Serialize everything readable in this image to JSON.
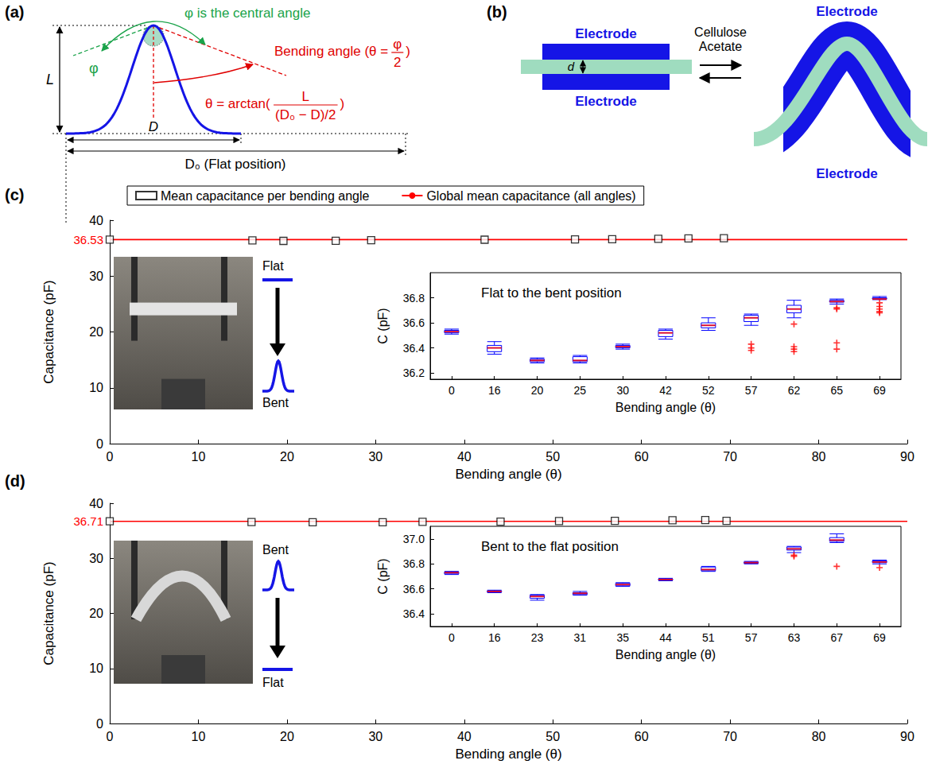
{
  "panel_a": {
    "letter": "(a)",
    "central_angle_note": "φ is the central angle",
    "phi": "φ",
    "height_label": "L",
    "width_label": "D",
    "flat_width_label": "D₀ (Flat position)",
    "bending_label": {
      "before": "Bending angle (θ =",
      "numerator": "φ",
      "denominator": "2",
      "after": ")"
    },
    "formula": {
      "before": "θ = arctan(",
      "numerator": "L",
      "denominator": "(D₀ − D)/2",
      "after": ")"
    }
  },
  "panel_b": {
    "letter": "(b)",
    "flat": {
      "top": "Electrode",
      "bottom": "Electrode"
    },
    "gap": "d",
    "material": "Cellulose Acetate",
    "bent": {
      "top": "Electrode",
      "bottom": "Electrode"
    }
  },
  "panel_c": {
    "letter": "(c)",
    "photo_labels": {
      "start": "Flat",
      "end": "Bent"
    }
  },
  "panel_d": {
    "letter": "(d)",
    "photo_labels": {
      "start": "Bent",
      "end": "Flat"
    }
  },
  "chart_data": [
    {
      "type": "scatter",
      "x_label": "Bending angle (θ)",
      "y_label": "Capacitance (pF)",
      "xlim": [
        0,
        90
      ],
      "xticks": [
        0,
        10,
        20,
        30,
        40,
        50,
        60,
        70,
        80,
        90
      ],
      "ylim": [
        0,
        40
      ],
      "yticks": [
        0,
        10,
        20,
        30,
        40
      ],
      "legend": "top",
      "series": [
        {
          "name": "Mean capacitance per bending angle",
          "type": "scatter",
          "marker": "square",
          "color": "#000000",
          "x": [
            0,
            16.1,
            19.6,
            25.5,
            29.5,
            42.3,
            52.5,
            56.7,
            61.9,
            65.3,
            69.3
          ],
          "values": [
            36.53,
            36.4,
            36.3,
            36.31,
            36.41,
            36.51,
            36.58,
            36.61,
            36.67,
            36.73,
            36.77
          ]
        },
        {
          "name": "Global mean capacitance (all angles)",
          "type": "line",
          "color": "#ff0000",
          "x": [
            0,
            90
          ],
          "values": [
            36.53,
            36.53
          ]
        }
      ]
    },
    {
      "type": "boxplot",
      "title": "Flat to the bent position",
      "x_label": "Bending angle (θ)",
      "y_label": "C (pF)",
      "categories": [
        "0",
        "16",
        "20",
        "25",
        "30",
        "42",
        "52",
        "57",
        "62",
        "65",
        "69"
      ],
      "ylim": [
        36.15,
        37.0
      ],
      "yticks": [
        36.2,
        36.4,
        36.6,
        36.8
      ],
      "color": "#0000ff",
      "boxes": [
        {
          "min": 36.51,
          "q1": 36.52,
          "median": 36.53,
          "q3": 36.54,
          "max": 36.55,
          "outliers": []
        },
        {
          "min": 36.35,
          "q1": 36.37,
          "median": 36.4,
          "q3": 36.42,
          "max": 36.45,
          "outliers": []
        },
        {
          "min": 36.28,
          "q1": 36.29,
          "median": 36.3,
          "q3": 36.31,
          "max": 36.32,
          "outliers": []
        },
        {
          "min": 36.28,
          "q1": 36.29,
          "median": 36.3,
          "q3": 36.33,
          "max": 36.34,
          "outliers": []
        },
        {
          "min": 36.39,
          "q1": 36.4,
          "median": 36.41,
          "q3": 36.42,
          "max": 36.43,
          "outliers": []
        },
        {
          "min": 36.47,
          "q1": 36.49,
          "median": 36.52,
          "q3": 36.54,
          "max": 36.55,
          "outliers": []
        },
        {
          "min": 36.54,
          "q1": 36.56,
          "median": 36.58,
          "q3": 36.6,
          "max": 36.64,
          "outliers": []
        },
        {
          "min": 36.58,
          "q1": 36.61,
          "median": 36.64,
          "q3": 36.66,
          "max": 36.67,
          "outliers": [
            36.43,
            36.4,
            36.38
          ]
        },
        {
          "min": 36.64,
          "q1": 36.68,
          "median": 36.71,
          "q3": 36.74,
          "max": 36.78,
          "outliers": [
            36.59,
            36.41,
            36.39,
            36.37
          ]
        },
        {
          "min": 36.75,
          "q1": 36.765,
          "median": 36.77,
          "q3": 36.78,
          "max": 36.79,
          "outliers": [
            36.72,
            36.71,
            36.44,
            36.39
          ]
        },
        {
          "min": 36.785,
          "q1": 36.79,
          "median": 36.79,
          "q3": 36.8,
          "max": 36.81,
          "outliers": [
            36.76,
            36.73,
            36.71,
            36.69,
            36.68
          ]
        }
      ]
    },
    {
      "type": "scatter",
      "x_label": "Bending angle (θ)",
      "y_label": "Capacitance (pF)",
      "xlim": [
        0,
        90
      ],
      "xticks": [
        0,
        10,
        20,
        30,
        40,
        50,
        60,
        70,
        80,
        90
      ],
      "ylim": [
        0,
        40
      ],
      "yticks": [
        0,
        10,
        20,
        30,
        40
      ],
      "series": [
        {
          "name": "Mean capacitance per bending angle",
          "type": "scatter",
          "marker": "square",
          "color": "#000000",
          "x": [
            0,
            16,
            22.9,
            30.8,
            35.3,
            44.1,
            50.7,
            57,
            63.5,
            67.2,
            69.6
          ],
          "values": [
            36.73,
            36.58,
            36.54,
            36.56,
            36.63,
            36.67,
            36.76,
            36.81,
            36.91,
            36.96,
            36.81
          ]
        },
        {
          "name": "Global mean capacitance (all angles)",
          "type": "line",
          "color": "#ff0000",
          "x": [
            0,
            90
          ],
          "values": [
            36.71,
            36.71
          ]
        }
      ]
    },
    {
      "type": "boxplot",
      "title": "Bent to the flat position",
      "x_label": "Bending angle (θ)",
      "y_label": "C (pF)",
      "categories": [
        "0",
        "16",
        "23",
        "31",
        "35",
        "44",
        "51",
        "57",
        "63",
        "67",
        "69"
      ],
      "ylim": [
        36.3,
        37.1
      ],
      "yticks": [
        36.4,
        36.6,
        36.8,
        {
          "value": 37,
          "label": "37.0"
        }
      ],
      "color": "#0000ff",
      "boxes": [
        {
          "min": 36.715,
          "q1": 36.72,
          "median": 36.73,
          "q3": 36.735,
          "max": 36.74,
          "outliers": []
        },
        {
          "min": 36.57,
          "q1": 36.575,
          "median": 36.58,
          "q3": 36.585,
          "max": 36.59,
          "outliers": []
        },
        {
          "min": 36.51,
          "q1": 36.525,
          "median": 36.54,
          "q3": 36.55,
          "max": 36.555,
          "outliers": []
        },
        {
          "min": 36.55,
          "q1": 36.555,
          "median": 36.565,
          "q3": 36.57,
          "max": 36.58,
          "outliers": []
        },
        {
          "min": 36.62,
          "q1": 36.625,
          "median": 36.635,
          "q3": 36.645,
          "max": 36.65,
          "outliers": []
        },
        {
          "min": 36.665,
          "q1": 36.67,
          "median": 36.675,
          "q3": 36.68,
          "max": 36.685,
          "outliers": []
        },
        {
          "min": 36.74,
          "q1": 36.745,
          "median": 36.755,
          "q3": 36.775,
          "max": 36.78,
          "outliers": []
        },
        {
          "min": 36.8,
          "q1": 36.805,
          "median": 36.81,
          "q3": 36.815,
          "max": 36.82,
          "outliers": []
        },
        {
          "min": 36.89,
          "q1": 36.91,
          "median": 36.92,
          "q3": 36.935,
          "max": 36.94,
          "outliers": [
            36.87,
            36.86
          ]
        },
        {
          "min": 36.97,
          "q1": 36.98,
          "median": 36.99,
          "q3": 37.01,
          "max": 37.04,
          "outliers": [
            36.78
          ]
        },
        {
          "min": 36.8,
          "q1": 36.81,
          "median": 36.815,
          "q3": 36.825,
          "max": 36.83,
          "outliers": [
            36.77
          ]
        }
      ]
    }
  ]
}
